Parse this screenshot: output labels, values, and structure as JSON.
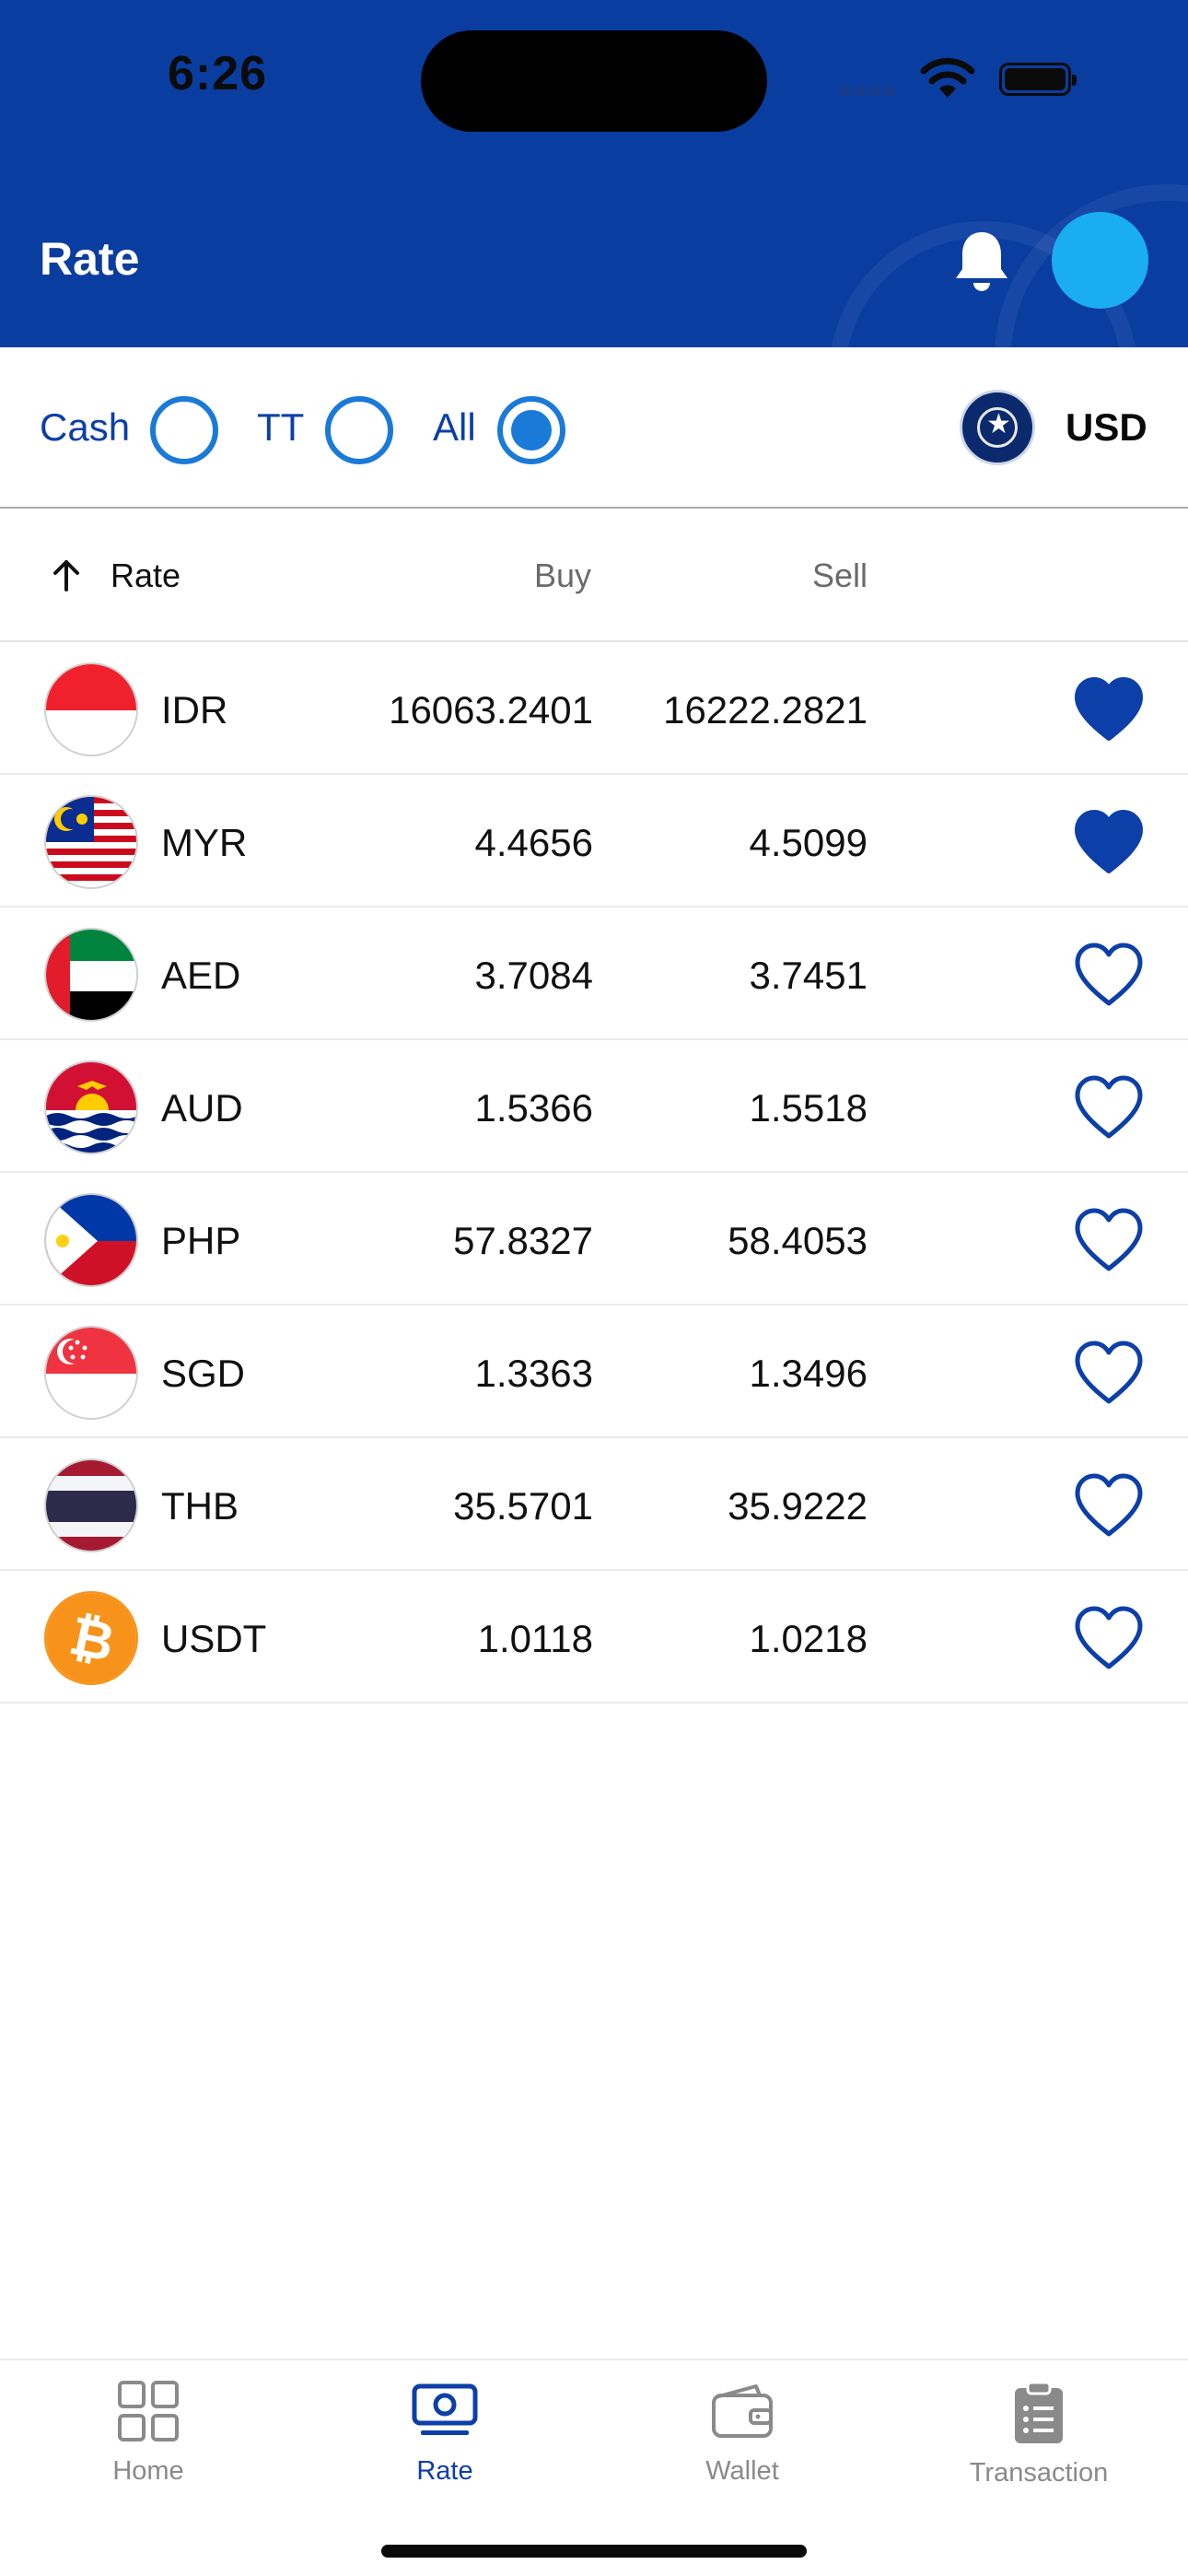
{
  "status_bar": {
    "time": "6:26"
  },
  "header": {
    "title": "Rate",
    "colors": {
      "background": "#0a3da0",
      "avatar": "#1aaef0"
    }
  },
  "filter": {
    "options": [
      {
        "label": "Cash",
        "selected": false
      },
      {
        "label": "TT",
        "selected": false
      },
      {
        "label": "All",
        "selected": true
      }
    ],
    "base_currency": "USD"
  },
  "table": {
    "columns": {
      "rate": "Rate",
      "buy": "Buy",
      "sell": "Sell"
    },
    "sort": "ascending",
    "rows": [
      {
        "code": "IDR",
        "buy": "16063.2401",
        "sell": "16222.2821",
        "favorite": true,
        "flag": "indonesia-flag"
      },
      {
        "code": "MYR",
        "buy": "4.4656",
        "sell": "4.5099",
        "favorite": true,
        "flag": "malaysia-flag"
      },
      {
        "code": "AED",
        "buy": "3.7084",
        "sell": "3.7451",
        "favorite": false,
        "flag": "uae-flag"
      },
      {
        "code": "AUD",
        "buy": "1.5366",
        "sell": "1.5518",
        "favorite": false,
        "flag": "kiribati-flag"
      },
      {
        "code": "PHP",
        "buy": "57.8327",
        "sell": "58.4053",
        "favorite": false,
        "flag": "philippines-flag"
      },
      {
        "code": "SGD",
        "buy": "1.3363",
        "sell": "1.3496",
        "favorite": false,
        "flag": "singapore-flag"
      },
      {
        "code": "THB",
        "buy": "35.5701",
        "sell": "35.9222",
        "favorite": false,
        "flag": "thailand-flag"
      },
      {
        "code": "USDT",
        "buy": "1.0118",
        "sell": "1.0218",
        "favorite": false,
        "flag": "bitcoin-icon"
      }
    ]
  },
  "bottom_nav": {
    "items": [
      {
        "label": "Home",
        "icon": "grid-icon",
        "active": false
      },
      {
        "label": "Rate",
        "icon": "banknote-icon",
        "active": true
      },
      {
        "label": "Wallet",
        "icon": "wallet-icon",
        "active": false
      },
      {
        "label": "Transaction",
        "icon": "clipboard-list-icon",
        "active": false
      }
    ],
    "colors": {
      "active": "#0c3fa8",
      "inactive": "#8a8a8a"
    }
  }
}
